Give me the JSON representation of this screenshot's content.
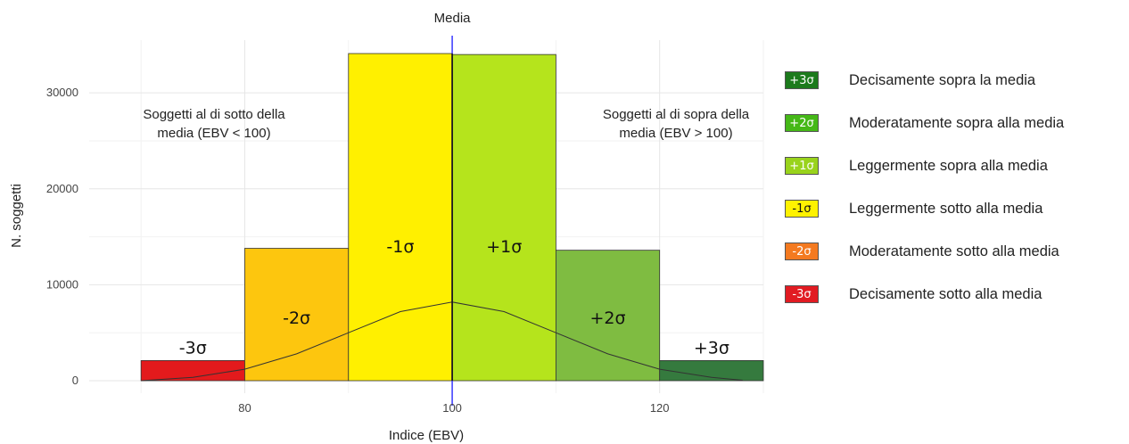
{
  "chart_data": {
    "type": "bar",
    "title": "",
    "xlabel": "Indice (EBV)",
    "ylabel": "N. soggetti",
    "xlim": [
      65,
      130
    ],
    "ylim": [
      -1300,
      35500
    ],
    "x_ticks": [
      80,
      100,
      120
    ],
    "y_ticks": [
      0,
      10000,
      20000,
      30000
    ],
    "grid": true,
    "bars": [
      {
        "x0": 70,
        "x1": 80,
        "value": 2100,
        "label": "-3σ",
        "color": "#e31a1c"
      },
      {
        "x0": 80,
        "x1": 90,
        "value": 13800,
        "label": "-2σ",
        "color": "#fdc60e"
      },
      {
        "x0": 90,
        "x1": 100,
        "value": 34100,
        "label": "-1σ",
        "color": "#fff000"
      },
      {
        "x0": 100,
        "x1": 110,
        "value": 34000,
        "label": "+1σ",
        "color": "#b5e41c"
      },
      {
        "x0": 110,
        "x1": 120,
        "value": 13600,
        "label": "+2σ",
        "color": "#7fbc41"
      },
      {
        "x0": 120,
        "x1": 130,
        "value": 2100,
        "label": "+3σ",
        "color": "#357a3e"
      }
    ],
    "curve": {
      "x": [
        70,
        75,
        80,
        85,
        90,
        95,
        100,
        105,
        110,
        115,
        120,
        125,
        128
      ],
      "y": [
        0,
        350,
        1200,
        2800,
        5000,
        7200,
        8200,
        7200,
        5000,
        2800,
        1200,
        350,
        50
      ]
    },
    "mean_line": {
      "x": 100,
      "label": "Media",
      "color": "#2a2aff"
    },
    "annotations": {
      "left": [
        "Soggetti al di sotto della",
        "media (EBV < 100)"
      ],
      "right": [
        "Soggetti al di sopra della",
        "media (EBV > 100)"
      ]
    },
    "legend": {
      "position": "right",
      "items": [
        {
          "key": "+3σ",
          "text": "Decisamente sopra la media",
          "color": "#1c7a1c"
        },
        {
          "key": "+2σ",
          "text": "Moderatamente sopra alla media",
          "color": "#45b817"
        },
        {
          "key": "+1σ",
          "text": "Leggermente sopra alla media",
          "color": "#99d31c"
        },
        {
          "key": "-1σ",
          "text": "Leggermente sotto alla media",
          "color": "#fff200"
        },
        {
          "key": "-2σ",
          "text": "Moderatamente sotto alla media",
          "color": "#f47a20"
        },
        {
          "key": "-3σ",
          "text": "Decisamente sotto alla media",
          "color": "#e11b22"
        }
      ]
    }
  }
}
